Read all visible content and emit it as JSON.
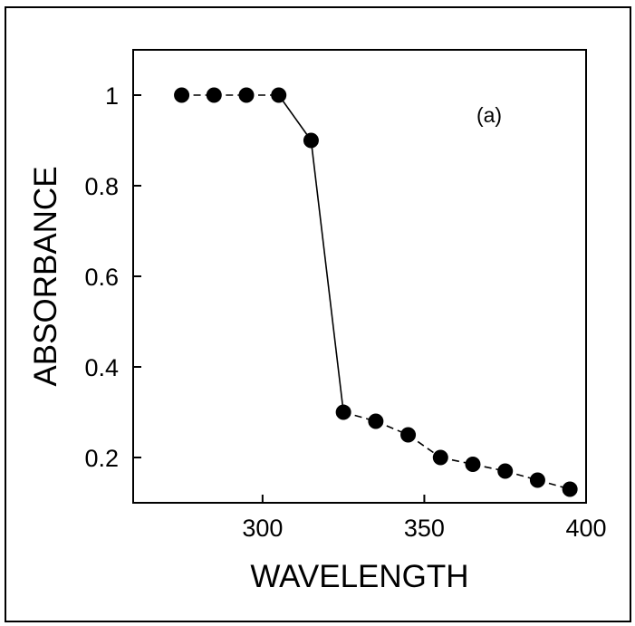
{
  "chart_data": {
    "type": "line",
    "panel_label": "(a)",
    "xlabel": "WAVELENGTH",
    "ylabel": "ABSORBANCE",
    "xlim": [
      260,
      400
    ],
    "ylim": [
      0.1,
      1.1
    ],
    "xticks": [
      300,
      350,
      400
    ],
    "xtick_labels": [
      "300",
      "350",
      "400"
    ],
    "yticks": [
      0.2,
      0.4,
      0.6,
      0.8,
      1.0
    ],
    "ytick_labels": [
      "0.2",
      "0.4",
      "0.6",
      "0.8",
      "1"
    ],
    "grid": false,
    "legend": "none",
    "series": [
      {
        "marker": "filled-circle",
        "color": "#000000",
        "points": [
          {
            "x": 275,
            "y": 1.0
          },
          {
            "x": 285,
            "y": 1.0
          },
          {
            "x": 295,
            "y": 1.0
          },
          {
            "x": 305,
            "y": 1.0
          },
          {
            "x": 315,
            "y": 0.9
          },
          {
            "x": 325,
            "y": 0.3
          },
          {
            "x": 335,
            "y": 0.28
          },
          {
            "x": 345,
            "y": 0.25
          },
          {
            "x": 355,
            "y": 0.2
          },
          {
            "x": 365,
            "y": 0.185
          },
          {
            "x": 375,
            "y": 0.17
          },
          {
            "x": 385,
            "y": 0.15
          },
          {
            "x": 395,
            "y": 0.13
          }
        ],
        "segment_styles": [
          "dashed",
          "dashed",
          "dashed",
          "solid",
          "solid",
          "dashed",
          "dashed",
          "dashed",
          "dashed",
          "dashed",
          "dashed",
          "dashed"
        ]
      }
    ]
  }
}
